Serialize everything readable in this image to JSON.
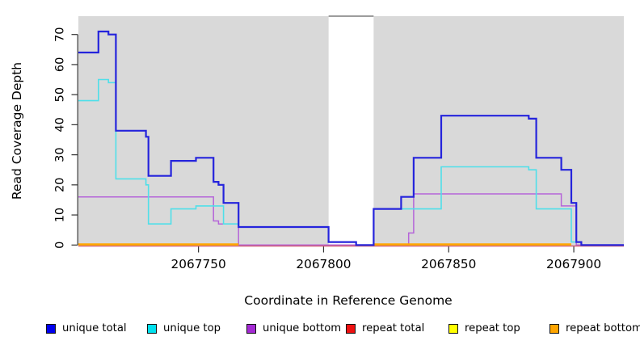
{
  "chart_data": {
    "type": "line",
    "subtype": "step-coverage",
    "title": "",
    "xlabel": "Coordinate in Reference Genome",
    "ylabel": "Read Coverage Depth",
    "xlim": [
      2067702,
      2067920
    ],
    "ylim": [
      0,
      76.5
    ],
    "x_ticks": [
      2067750,
      2067800,
      2067850,
      2067900
    ],
    "y_ticks": [
      0,
      10,
      20,
      30,
      40,
      50,
      60,
      70
    ],
    "grid": false,
    "legend_position": "bottom",
    "plot_background_color": "#d9d9d9",
    "gap_border_color": "#9c9c9c",
    "covered_regions": [
      [
        2067702,
        2067802
      ],
      [
        2067820,
        2067920
      ]
    ],
    "gap_region": [
      2067802,
      2067820
    ],
    "series": [
      {
        "name": "unique bottom",
        "color": "#b565d9",
        "width": 1.5,
        "offset": 0,
        "segments": [
          [
            [
              2067702,
              16
            ],
            [
              2067756,
              8
            ],
            [
              2067758,
              7
            ],
            [
              2067766,
              0
            ],
            [
              2067834,
              4
            ],
            [
              2067836,
              17
            ],
            [
              2067895,
              13
            ],
            [
              2067901,
              0
            ],
            [
              2067920,
              0
            ]
          ]
        ]
      },
      {
        "name": "repeat total",
        "color": "#cf5c74",
        "width": 1.5,
        "offset": 1.2,
        "segments": [
          [
            [
              2067702,
              0
            ],
            [
              2067920,
              0
            ]
          ]
        ]
      },
      {
        "name": "repeat top",
        "color": "#ffff00",
        "width": 1.4,
        "offset": -0.2,
        "segments": [
          [
            [
              2067702,
              0
            ],
            [
              2067766,
              0
            ]
          ],
          [
            [
              2067820,
              0
            ],
            [
              2067899,
              0
            ]
          ]
        ]
      },
      {
        "name": "repeat bottom",
        "color": "#ffa500",
        "width": 2.4,
        "offset": -0.8,
        "segments": [
          [
            [
              2067702,
              0
            ],
            [
              2067766,
              0
            ]
          ],
          [
            [
              2067820,
              0
            ],
            [
              2067899,
              0
            ]
          ]
        ]
      },
      {
        "name": "unique top",
        "color": "#4fdfe9",
        "width": 1.6,
        "offset": 0,
        "segments": [
          [
            [
              2067702,
              48
            ],
            [
              2067710,
              55
            ],
            [
              2067714,
              54
            ],
            [
              2067717,
              22
            ],
            [
              2067729,
              20
            ],
            [
              2067730,
              7
            ],
            [
              2067739,
              12
            ],
            [
              2067749,
              13
            ],
            [
              2067760,
              7
            ],
            [
              2067766,
              6
            ],
            [
              2067802,
              1
            ],
            [
              2067813,
              0
            ],
            [
              2067820,
              12
            ],
            [
              2067847,
              26
            ],
            [
              2067882,
              25
            ],
            [
              2067885,
              12
            ],
            [
              2067899,
              1
            ],
            [
              2067903,
              0
            ],
            [
              2067920,
              0
            ]
          ]
        ]
      },
      {
        "name": "unique total",
        "color": "#2524dc",
        "width": 2.2,
        "offset": 0,
        "segments": [
          [
            [
              2067702,
              64
            ],
            [
              2067710,
              71
            ],
            [
              2067714,
              70
            ],
            [
              2067717,
              38
            ],
            [
              2067729,
              36
            ],
            [
              2067730,
              23
            ],
            [
              2067739,
              28
            ],
            [
              2067749,
              29
            ],
            [
              2067756,
              21
            ],
            [
              2067758,
              20
            ],
            [
              2067760,
              14
            ],
            [
              2067766,
              6
            ],
            [
              2067802,
              1
            ],
            [
              2067813,
              0
            ],
            [
              2067820,
              12
            ],
            [
              2067831,
              16
            ],
            [
              2067836,
              29
            ],
            [
              2067847,
              43
            ],
            [
              2067882,
              42
            ],
            [
              2067885,
              29
            ],
            [
              2067895,
              25
            ],
            [
              2067899,
              14
            ],
            [
              2067901,
              1
            ],
            [
              2067903,
              0
            ],
            [
              2067920,
              0
            ]
          ]
        ]
      }
    ],
    "legend": [
      {
        "label": "unique total",
        "color": "#0000ee"
      },
      {
        "label": "unique top",
        "color": "#00e1ee"
      },
      {
        "label": "unique bottom",
        "color": "#a42ad4"
      },
      {
        "label": "repeat total",
        "color": "#ee1111"
      },
      {
        "label": "repeat top",
        "color": "#ffff00"
      },
      {
        "label": "repeat bottom",
        "color": "#ffa500"
      }
    ],
    "legend_x_positions": [
      57,
      182,
      305,
      428,
      555,
      680
    ]
  },
  "layout_text": {
    "xlabel": "Coordinate in Reference Genome",
    "ylabel": "Read Coverage Depth"
  }
}
